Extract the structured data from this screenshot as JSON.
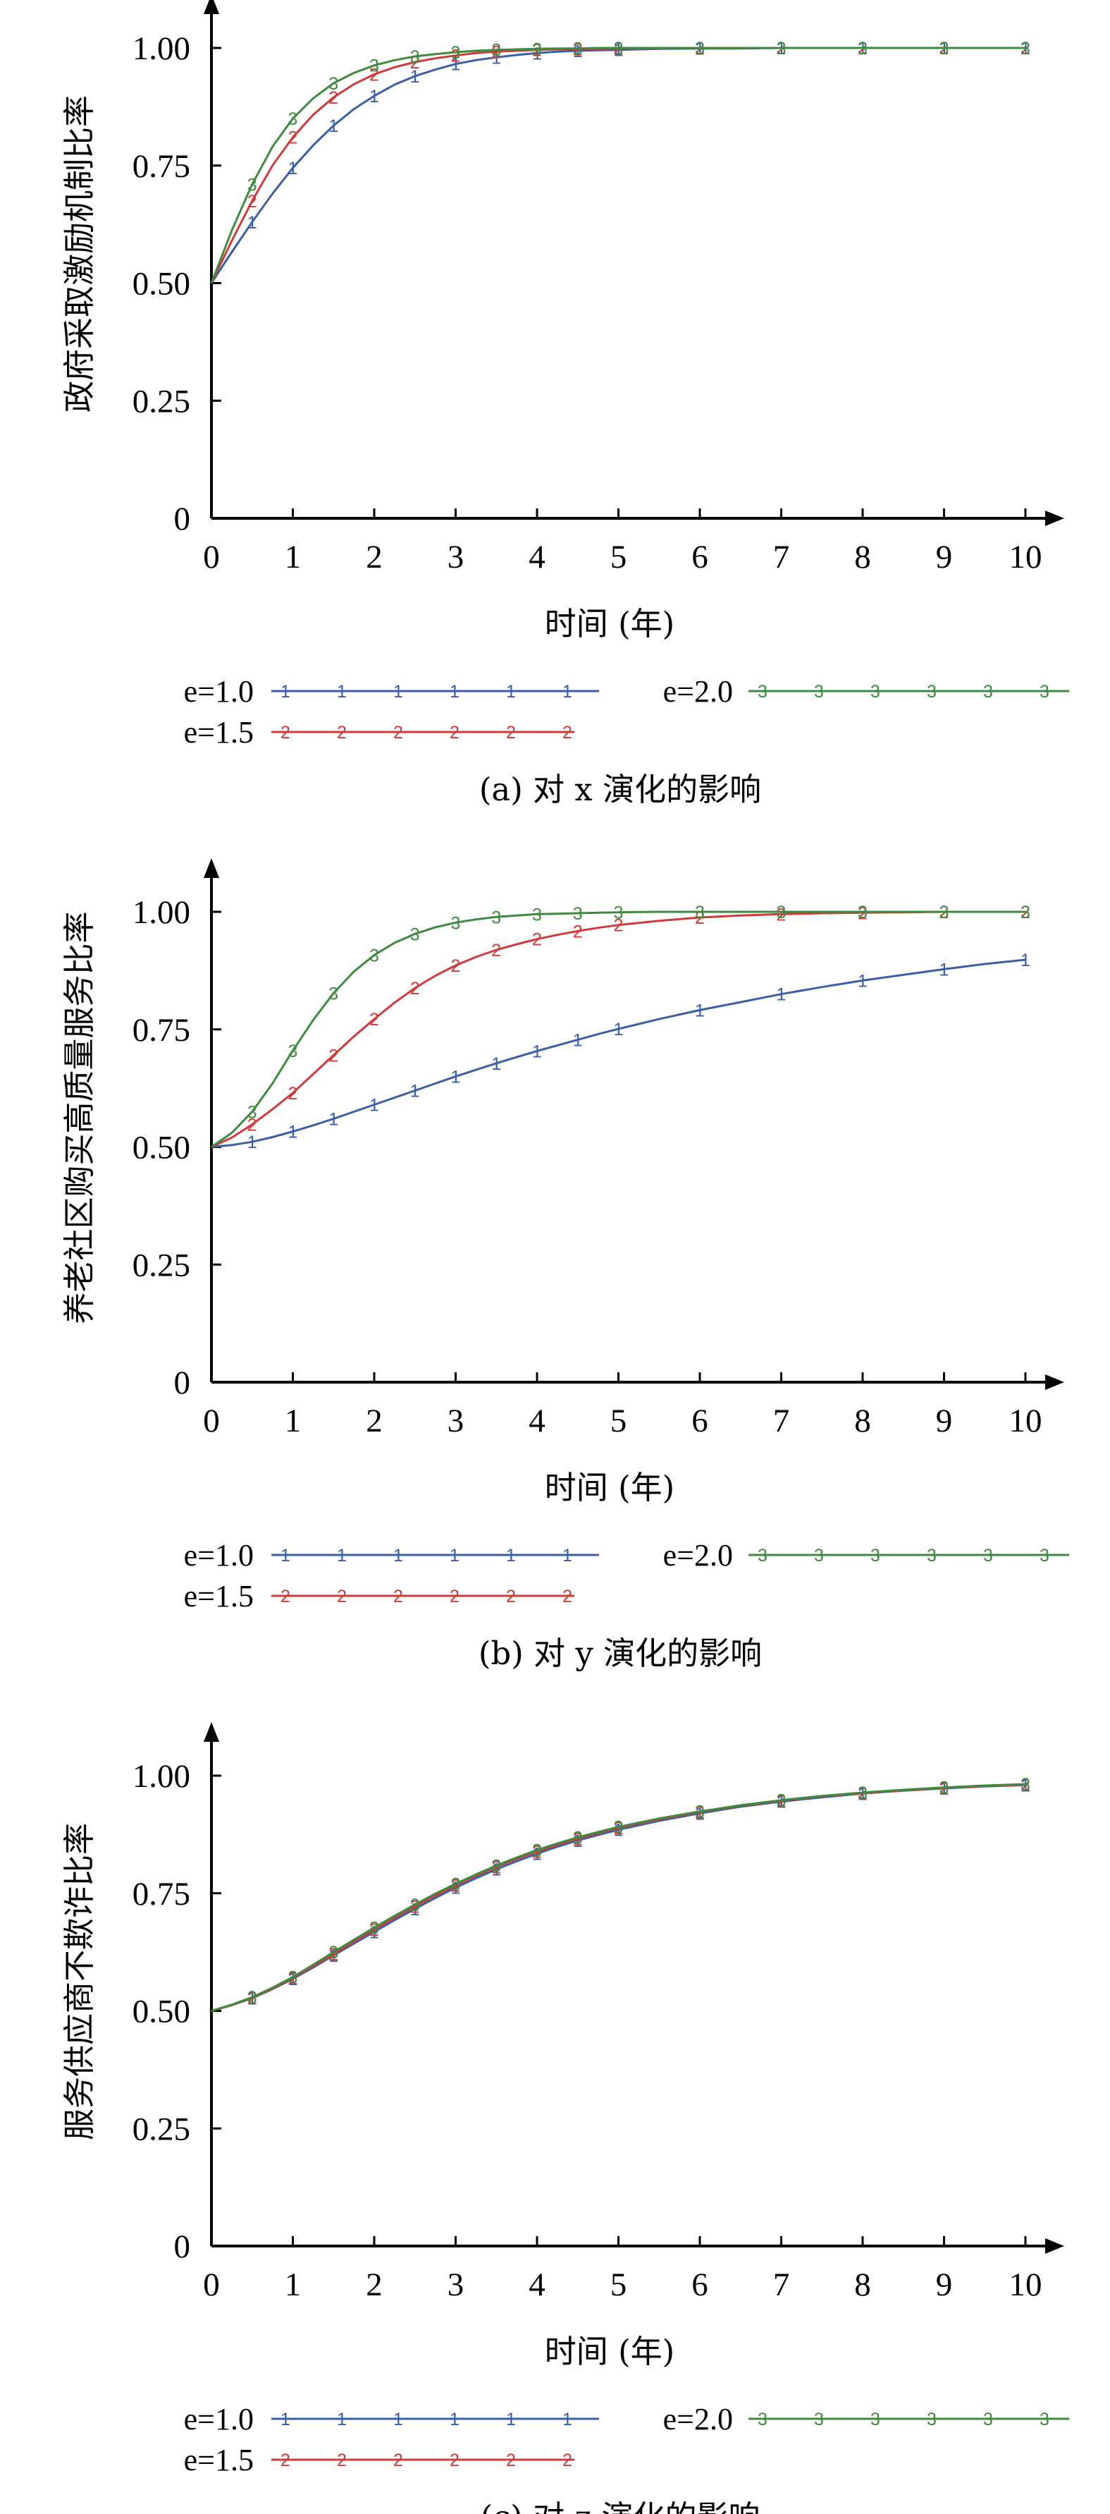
{
  "colors": {
    "e1": "#3a5ea8",
    "e15": "#d23a3a",
    "e2": "#3e8a3e",
    "axis": "#000000"
  },
  "chart_data": [
    {
      "type": "line",
      "title": "",
      "caption": "(a) 对 x 演化的影响",
      "xlabel": "时间 (年)",
      "ylabel": "政府采取激励机制比率",
      "xlim": [
        0,
        10
      ],
      "ylim": [
        0,
        1.0
      ],
      "xticks": [
        "0",
        "1",
        "2",
        "3",
        "4",
        "5",
        "6",
        "7",
        "8",
        "9",
        "10"
      ],
      "yticks": [
        "0",
        "0.25",
        "0.50",
        "0.75",
        "1.00"
      ],
      "x": [
        0,
        0.25,
        0.5,
        0.75,
        1,
        1.25,
        1.5,
        1.75,
        2,
        2.25,
        2.5,
        2.75,
        3,
        3.25,
        3.5,
        3.75,
        4,
        4.25,
        4.5,
        4.75,
        5,
        5.5,
        6,
        6.5,
        7,
        7.5,
        8,
        8.5,
        9,
        9.5,
        10
      ],
      "series": [
        {
          "name": "e=1.0",
          "marker": "1",
          "values": [
            0.5,
            0.566,
            0.63,
            0.69,
            0.745,
            0.793,
            0.835,
            0.87,
            0.898,
            0.922,
            0.94,
            0.954,
            0.966,
            0.974,
            0.98,
            0.985,
            0.989,
            0.992,
            0.994,
            0.995,
            0.996,
            0.998,
            0.999,
            0.999,
            1,
            1,
            1,
            1,
            1,
            1,
            1
          ]
        },
        {
          "name": "e=1.5",
          "marker": "2",
          "values": [
            0.5,
            0.59,
            0.675,
            0.75,
            0.81,
            0.858,
            0.895,
            0.923,
            0.944,
            0.959,
            0.97,
            0.978,
            0.984,
            0.989,
            0.992,
            0.994,
            0.996,
            0.997,
            0.998,
            0.998,
            0.999,
            0.999,
            1,
            1,
            1,
            1,
            1,
            1,
            1,
            1,
            1
          ]
        },
        {
          "name": "e=2.0",
          "marker": "3",
          "values": [
            0.5,
            0.612,
            0.71,
            0.79,
            0.85,
            0.893,
            0.925,
            0.947,
            0.963,
            0.974,
            0.982,
            0.987,
            0.991,
            0.994,
            0.996,
            0.997,
            0.998,
            0.999,
            0.999,
            1,
            1,
            1,
            1,
            1,
            1,
            1,
            1,
            1,
            1,
            1,
            1
          ]
        }
      ],
      "legend": [
        "e=1.0",
        "e=2.0",
        "e=1.5"
      ]
    },
    {
      "type": "line",
      "title": "",
      "caption": "(b) 对 y 演化的影响",
      "xlabel": "时间 (年)",
      "ylabel": "养老社区购买高质量服务比率",
      "xlim": [
        0,
        10
      ],
      "ylim": [
        0,
        1.0
      ],
      "xticks": [
        "0",
        "1",
        "2",
        "3",
        "4",
        "5",
        "6",
        "7",
        "8",
        "9",
        "10"
      ],
      "yticks": [
        "0",
        "0.25",
        "0.50",
        "0.75",
        "1.00"
      ],
      "x": [
        0,
        0.25,
        0.5,
        0.75,
        1,
        1.25,
        1.5,
        1.75,
        2,
        2.25,
        2.5,
        2.75,
        3,
        3.25,
        3.5,
        3.75,
        4,
        4.25,
        4.5,
        4.75,
        5,
        5.5,
        6,
        6.5,
        7,
        7.5,
        8,
        8.5,
        9,
        9.5,
        10
      ],
      "series": [
        {
          "name": "e=1.0",
          "marker": "1",
          "values": [
            0.5,
            0.504,
            0.511,
            0.521,
            0.533,
            0.546,
            0.56,
            0.575,
            0.59,
            0.605,
            0.62,
            0.635,
            0.65,
            0.664,
            0.678,
            0.691,
            0.704,
            0.716,
            0.728,
            0.74,
            0.751,
            0.772,
            0.791,
            0.808,
            0.825,
            0.84,
            0.854,
            0.866,
            0.878,
            0.889,
            0.898
          ]
        },
        {
          "name": "e=1.5",
          "marker": "2",
          "values": [
            0.5,
            0.52,
            0.548,
            0.58,
            0.615,
            0.655,
            0.695,
            0.735,
            0.772,
            0.807,
            0.838,
            0.864,
            0.886,
            0.904,
            0.919,
            0.931,
            0.942,
            0.951,
            0.959,
            0.966,
            0.972,
            0.981,
            0.988,
            0.992,
            0.995,
            0.997,
            0.998,
            0.999,
            1,
            1,
            1
          ]
        },
        {
          "name": "e=2.0",
          "marker": "3",
          "values": [
            0.5,
            0.53,
            0.575,
            0.635,
            0.705,
            0.77,
            0.827,
            0.873,
            0.908,
            0.934,
            0.953,
            0.967,
            0.977,
            0.984,
            0.989,
            0.992,
            0.995,
            0.996,
            0.997,
            0.998,
            0.999,
            1,
            1,
            1,
            1,
            1,
            1,
            1,
            1,
            1,
            1
          ]
        }
      ],
      "legend": [
        "e=1.0",
        "e=2.0",
        "e=1.5"
      ]
    },
    {
      "type": "line",
      "title": "",
      "caption": "(c) 对 z 演化的影响",
      "xlabel": "时间 (年)",
      "ylabel": "服务供应商不欺诈比率",
      "xlim": [
        0,
        10
      ],
      "ylim": [
        0,
        1.0
      ],
      "xticks": [
        "0",
        "1",
        "2",
        "3",
        "4",
        "5",
        "6",
        "7",
        "8",
        "9",
        "10"
      ],
      "yticks": [
        "0",
        "0.25",
        "0.50",
        "0.75",
        "1.00"
      ],
      "x": [
        0,
        0.25,
        0.5,
        0.75,
        1,
        1.25,
        1.5,
        1.75,
        2,
        2.25,
        2.5,
        2.75,
        3,
        3.25,
        3.5,
        3.75,
        4,
        4.25,
        4.5,
        4.75,
        5,
        5.5,
        6,
        6.5,
        7,
        7.5,
        8,
        8.5,
        9,
        9.5,
        10
      ],
      "series": [
        {
          "name": "e=1.0",
          "marker": "1",
          "values": [
            0.5,
            0.512,
            0.527,
            0.546,
            0.568,
            0.592,
            0.618,
            0.643,
            0.668,
            0.693,
            0.717,
            0.74,
            0.762,
            0.782,
            0.801,
            0.818,
            0.834,
            0.849,
            0.862,
            0.874,
            0.885,
            0.904,
            0.92,
            0.934,
            0.945,
            0.954,
            0.962,
            0.968,
            0.973,
            0.977,
            0.98
          ]
        },
        {
          "name": "e=1.5",
          "marker": "2",
          "values": [
            0.5,
            0.512,
            0.528,
            0.547,
            0.57,
            0.595,
            0.621,
            0.647,
            0.673,
            0.698,
            0.722,
            0.745,
            0.767,
            0.787,
            0.806,
            0.823,
            0.839,
            0.853,
            0.866,
            0.878,
            0.889,
            0.907,
            0.923,
            0.936,
            0.947,
            0.956,
            0.963,
            0.969,
            0.974,
            0.978,
            0.981
          ]
        },
        {
          "name": "e=2.0",
          "marker": "3",
          "values": [
            0.5,
            0.513,
            0.529,
            0.549,
            0.572,
            0.598,
            0.625,
            0.651,
            0.677,
            0.702,
            0.726,
            0.749,
            0.77,
            0.79,
            0.809,
            0.826,
            0.842,
            0.856,
            0.869,
            0.88,
            0.891,
            0.909,
            0.924,
            0.937,
            0.948,
            0.957,
            0.964,
            0.97,
            0.975,
            0.979,
            0.982
          ]
        }
      ],
      "legend": [
        "e=1.0",
        "e=2.0",
        "e=1.5"
      ]
    }
  ]
}
